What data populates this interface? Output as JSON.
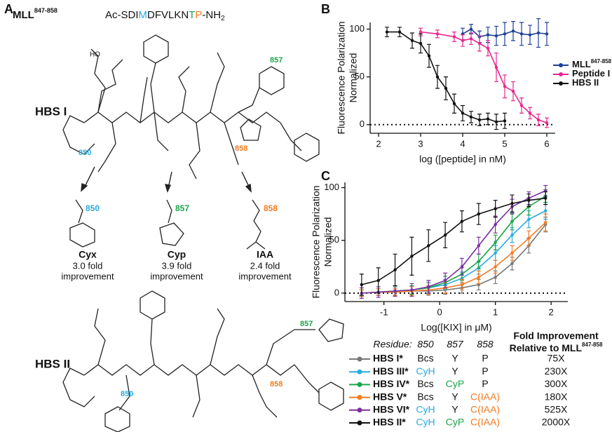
{
  "panel_labels": {
    "a": "A",
    "b": "B",
    "c": "C"
  },
  "panel_a": {
    "peptide": {
      "name": "MLL",
      "superscript": "847-858",
      "sequence": [
        "Ac-SDI",
        "M",
        "DFVLKN",
        "T",
        "P",
        "-NH",
        "2"
      ]
    },
    "structures": [
      "HBS I",
      "HBS II"
    ],
    "hbs_i_residues": [
      "850",
      "857",
      "858"
    ],
    "hbs_ii_residues": [
      "850",
      "857",
      "858"
    ],
    "modifications": [
      {
        "residue": "850",
        "name": "Cyx",
        "note": [
          "3.0 fold",
          "improvement"
        ]
      },
      {
        "residue": "857",
        "name": "Cyp",
        "note": [
          "3.9 fold",
          "improvement"
        ]
      },
      {
        "residue": "858",
        "name": "IAA",
        "note": [
          "2.4 fold",
          "improvement"
        ]
      }
    ]
  },
  "chart_data": [
    {
      "type": "scatter",
      "xlabel": "log ([peptide] in nM)",
      "ylabel": [
        "Fluorescence Polarization",
        "Normalized"
      ],
      "xlim": [
        1.8,
        6.2
      ],
      "ylim": [
        -9,
        107
      ],
      "xticks": [
        2,
        3,
        4,
        5,
        6
      ],
      "yticks": [
        0,
        50,
        100
      ],
      "hline": 0,
      "legend": "right",
      "series": [
        {
          "name": "MLL",
          "name_superscript": "847-858",
          "color": "#1f3f99",
          "x": [
            4.0,
            4.2,
            4.4,
            4.6,
            4.8,
            5.0,
            5.2,
            5.4,
            5.6,
            5.8,
            6.0
          ],
          "values": [
            95,
            100,
            92,
            94,
            93,
            95,
            98,
            95,
            94,
            96,
            95
          ],
          "errors": [
            6,
            5,
            6,
            8,
            10,
            12,
            10,
            12,
            10,
            15,
            12
          ]
        },
        {
          "name": "Peptide I",
          "color": "#e8268f",
          "x": [
            3.0,
            3.4,
            3.8,
            4.0,
            4.2,
            4.4,
            4.6,
            4.8,
            5.0,
            5.2,
            5.4,
            5.6,
            5.8,
            6.0
          ],
          "values": [
            97,
            95,
            92,
            88,
            90,
            85,
            80,
            60,
            40,
            35,
            20,
            12,
            5,
            2
          ],
          "errors": [
            4,
            4,
            5,
            6,
            6,
            8,
            8,
            15,
            12,
            10,
            8,
            6,
            6,
            5
          ]
        },
        {
          "name": "HBS II",
          "color": "#111111",
          "x": [
            2.2,
            2.5,
            2.8,
            3.0,
            3.2,
            3.4,
            3.6,
            3.8,
            4.0,
            4.2,
            4.4,
            4.6,
            4.8,
            5.0
          ],
          "values": [
            97,
            97,
            88,
            85,
            72,
            50,
            38,
            22,
            12,
            8,
            5,
            6,
            3,
            4
          ],
          "errors": [
            5,
            5,
            8,
            10,
            12,
            12,
            12,
            10,
            8,
            6,
            6,
            6,
            8,
            8
          ]
        }
      ]
    },
    {
      "type": "scatter",
      "xlabel": "Log([KIX] in μM)",
      "ylabel": [
        "Fluorescence Polarization",
        "Normalized"
      ],
      "xlim": [
        -1.7,
        2.3
      ],
      "ylim": [
        -8,
        105
      ],
      "xticks": [
        -1,
        0,
        1,
        2
      ],
      "yticks": [
        0,
        50,
        100
      ],
      "hline": 0,
      "series": [
        {
          "name": "HBS I*",
          "color": "#777777",
          "x": [
            -1.4,
            -1.1,
            -0.8,
            -0.5,
            -0.2,
            0.1,
            0.4,
            0.7,
            1.0,
            1.3,
            1.6,
            1.9
          ],
          "values": [
            0,
            1,
            1,
            2,
            2,
            3,
            5,
            8,
            15,
            28,
            45,
            65
          ],
          "errors": [
            3,
            3,
            3,
            4,
            4,
            4,
            5,
            5,
            6,
            6,
            7,
            7
          ]
        },
        {
          "name": "HBS III*",
          "color": "#29abe2",
          "x": [
            -1.4,
            -1.1,
            -0.8,
            -0.5,
            -0.2,
            0.1,
            0.4,
            0.7,
            1.0,
            1.3,
            1.6,
            1.9
          ],
          "values": [
            0,
            1,
            2,
            3,
            5,
            8,
            14,
            24,
            38,
            55,
            70,
            78
          ],
          "errors": [
            3,
            3,
            4,
            4,
            5,
            5,
            6,
            6,
            7,
            7,
            8,
            8
          ]
        },
        {
          "name": "HBS IV*",
          "color": "#1aa64a",
          "x": [
            -1.4,
            -1.1,
            -0.8,
            -0.5,
            -0.2,
            0.1,
            0.4,
            0.7,
            1.0,
            1.3,
            1.6,
            1.9
          ],
          "values": [
            0,
            1,
            2,
            3,
            5,
            10,
            18,
            30,
            48,
            68,
            82,
            92
          ],
          "errors": [
            3,
            3,
            4,
            4,
            5,
            6,
            6,
            7,
            7,
            8,
            8,
            6
          ]
        },
        {
          "name": "HBS V*",
          "color": "#f47b20",
          "x": [
            -1.4,
            -1.1,
            -0.8,
            -0.5,
            -0.2,
            0.1,
            0.4,
            0.7,
            1.0,
            1.3,
            1.6,
            1.9
          ],
          "values": [
            0,
            1,
            1,
            2,
            3,
            5,
            8,
            15,
            25,
            38,
            52,
            67
          ],
          "errors": [
            3,
            3,
            3,
            4,
            4,
            5,
            5,
            6,
            6,
            7,
            7,
            8
          ]
        },
        {
          "name": "HBS VI*",
          "color": "#7b2fa0",
          "x": [
            -1.4,
            -1.1,
            -0.8,
            -0.5,
            -0.2,
            0.1,
            0.4,
            0.7,
            1.0,
            1.3,
            1.6,
            1.9
          ],
          "values": [
            0,
            1,
            2,
            3,
            6,
            12,
            25,
            45,
            65,
            82,
            90,
            97
          ],
          "errors": [
            5,
            5,
            5,
            6,
            6,
            7,
            8,
            8,
            8,
            7,
            6,
            5
          ]
        },
        {
          "name": "HBS II*",
          "color": "#111111",
          "x": [
            -1.4,
            -1.1,
            -0.8,
            -0.5,
            -0.2,
            0.1,
            0.4,
            0.7,
            1.0,
            1.3,
            1.6,
            1.9
          ],
          "values": [
            8,
            12,
            22,
            35,
            45,
            55,
            68,
            75,
            80,
            85,
            88,
            90
          ],
          "errors": [
            10,
            12,
            15,
            18,
            15,
            12,
            10,
            10,
            8,
            8,
            6,
            6
          ]
        }
      ]
    }
  ],
  "table": {
    "header": [
      "Residue:",
      "850",
      "857",
      "858"
    ],
    "fold_header": [
      "Fold Improvement",
      "Relative to MLL"
    ],
    "fold_header_sup": "847-858",
    "rows": [
      {
        "cells": [
          {
            "text": "Bcs"
          },
          {
            "text": "Y"
          },
          {
            "text": "P"
          }
        ],
        "fold": "75X"
      },
      {
        "cells": [
          {
            "text": "CyH",
            "color": "#29abe2"
          },
          {
            "text": "Y"
          },
          {
            "text": "P"
          }
        ],
        "fold": "230X"
      },
      {
        "cells": [
          {
            "text": "Bcs"
          },
          {
            "text": "CyP",
            "color": "#1aa64a"
          },
          {
            "text": "P"
          }
        ],
        "fold": "300X"
      },
      {
        "cells": [
          {
            "text": "Bcs"
          },
          {
            "text": "Y"
          },
          {
            "text": "C(IAA)",
            "color": "#f47b20"
          }
        ],
        "fold": "180X"
      },
      {
        "cells": [
          {
            "text": "CyH",
            "color": "#29abe2"
          },
          {
            "text": "Y"
          },
          {
            "text": "C(IAA)",
            "color": "#f47b20"
          }
        ],
        "fold": "525X"
      },
      {
        "cells": [
          {
            "text": "CyH",
            "color": "#29abe2"
          },
          {
            "text": "CyP",
            "color": "#1aa64a"
          },
          {
            "text": "C(IAA)",
            "color": "#f47b20"
          }
        ],
        "fold": "2000X"
      }
    ]
  }
}
